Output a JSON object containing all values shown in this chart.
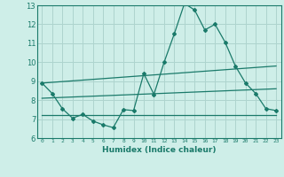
{
  "title": "",
  "xlabel": "Humidex (Indice chaleur)",
  "bg_color": "#ceeee8",
  "grid_color": "#aed4ce",
  "line_color": "#1a7a6a",
  "xlim": [
    -0.5,
    23.5
  ],
  "ylim": [
    6,
    13
  ],
  "xticks": [
    0,
    1,
    2,
    3,
    4,
    5,
    6,
    7,
    8,
    9,
    10,
    11,
    12,
    13,
    14,
    15,
    16,
    17,
    18,
    19,
    20,
    21,
    22,
    23
  ],
  "yticks": [
    6,
    7,
    8,
    9,
    10,
    11,
    12,
    13
  ],
  "main_line_x": [
    0,
    1,
    2,
    3,
    4,
    5,
    6,
    7,
    8,
    9,
    10,
    11,
    12,
    13,
    14,
    15,
    16,
    17,
    18,
    19,
    20,
    21,
    22,
    23
  ],
  "main_line_y": [
    8.9,
    8.35,
    7.55,
    7.05,
    7.25,
    6.9,
    6.7,
    6.55,
    7.5,
    7.45,
    9.4,
    8.3,
    10.0,
    11.5,
    13.1,
    12.75,
    11.7,
    12.0,
    11.05,
    9.8,
    8.9,
    8.35,
    7.55,
    7.45
  ],
  "upper_line_x": [
    0,
    23
  ],
  "upper_line_y": [
    8.9,
    9.8
  ],
  "lower_line_x": [
    0,
    23
  ],
  "lower_line_y": [
    8.1,
    8.6
  ],
  "flat_line_x": [
    0,
    23
  ],
  "flat_line_y": [
    7.2,
    7.2
  ]
}
